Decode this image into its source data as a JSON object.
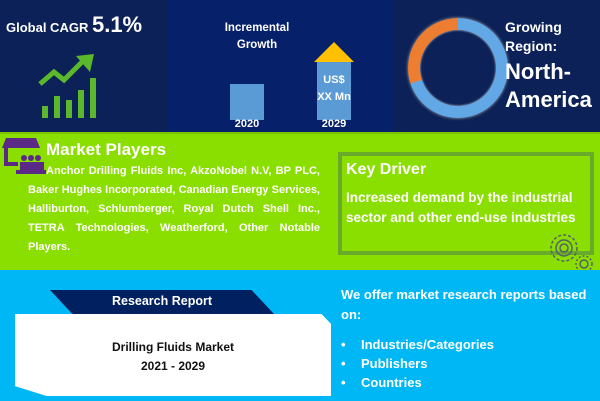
{
  "cagr": {
    "label": "Global CAGR",
    "value": "5.1%"
  },
  "incremental": {
    "title_line1": "Incremental",
    "title_line2": "Growth",
    "value_line1": "US$",
    "value_line2": "XX Mn",
    "year_start": "2020",
    "year_end": "2029"
  },
  "region": {
    "label_line1": "Growing",
    "label_line2": "Region:",
    "name_line1": "North-",
    "name_line2": "America",
    "region_share": 0.7
  },
  "market_players": {
    "title": "Market Players",
    "text": "Anchor Drilling Fluids Inc, AkzoNobel N.V, BP PLC, Baker Hughes Incorporated, Canadian Energy Services, Halliburton, Schlumberger, Royal Dutch Shell Inc., TETRA Technologies, Weatherford, Other Notable Players."
  },
  "key_driver": {
    "title": "Key Driver",
    "text": "Increased demand by the industrial sector and other end-use industries"
  },
  "report": {
    "tab_label": "Research Report",
    "title": "Drilling Fluids Market",
    "period": "2021 - 2029"
  },
  "offer": {
    "text": "We offer market research reports based on:",
    "items": [
      "Industries/Categories",
      "Publishers",
      "Countries"
    ]
  },
  "colors": {
    "navy": "#0b2157",
    "green": "#8ade00",
    "blue": "#00b7f5",
    "bar": "#5b9bd5",
    "arrow": "#ffc000",
    "donut_orange": "#ed7d31",
    "icon_green": "#5ab82a",
    "icon_purple": "#5b2a86"
  }
}
